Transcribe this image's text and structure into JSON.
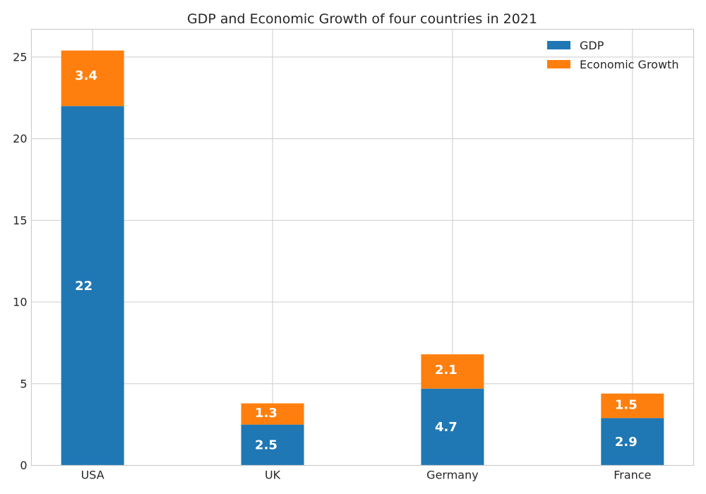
{
  "chart_data": {
    "type": "bar",
    "stacked": true,
    "title": "GDP and Economic Growth of four countries in 2021",
    "xlabel": "",
    "ylabel": "",
    "categories": [
      "USA",
      "UK",
      "Germany",
      "France"
    ],
    "series": [
      {
        "name": "GDP",
        "values": [
          22,
          2.5,
          4.7,
          2.9
        ],
        "color": "#1f77b4"
      },
      {
        "name": "Economic Growth",
        "values": [
          3.4,
          1.3,
          2.1,
          1.5
        ],
        "color": "#ff7f0e"
      }
    ],
    "ylim": [
      0,
      26.7
    ],
    "yticks": [
      0,
      5,
      10,
      15,
      20,
      25
    ],
    "grid": true,
    "legend": "top-right",
    "data_labels": true
  }
}
